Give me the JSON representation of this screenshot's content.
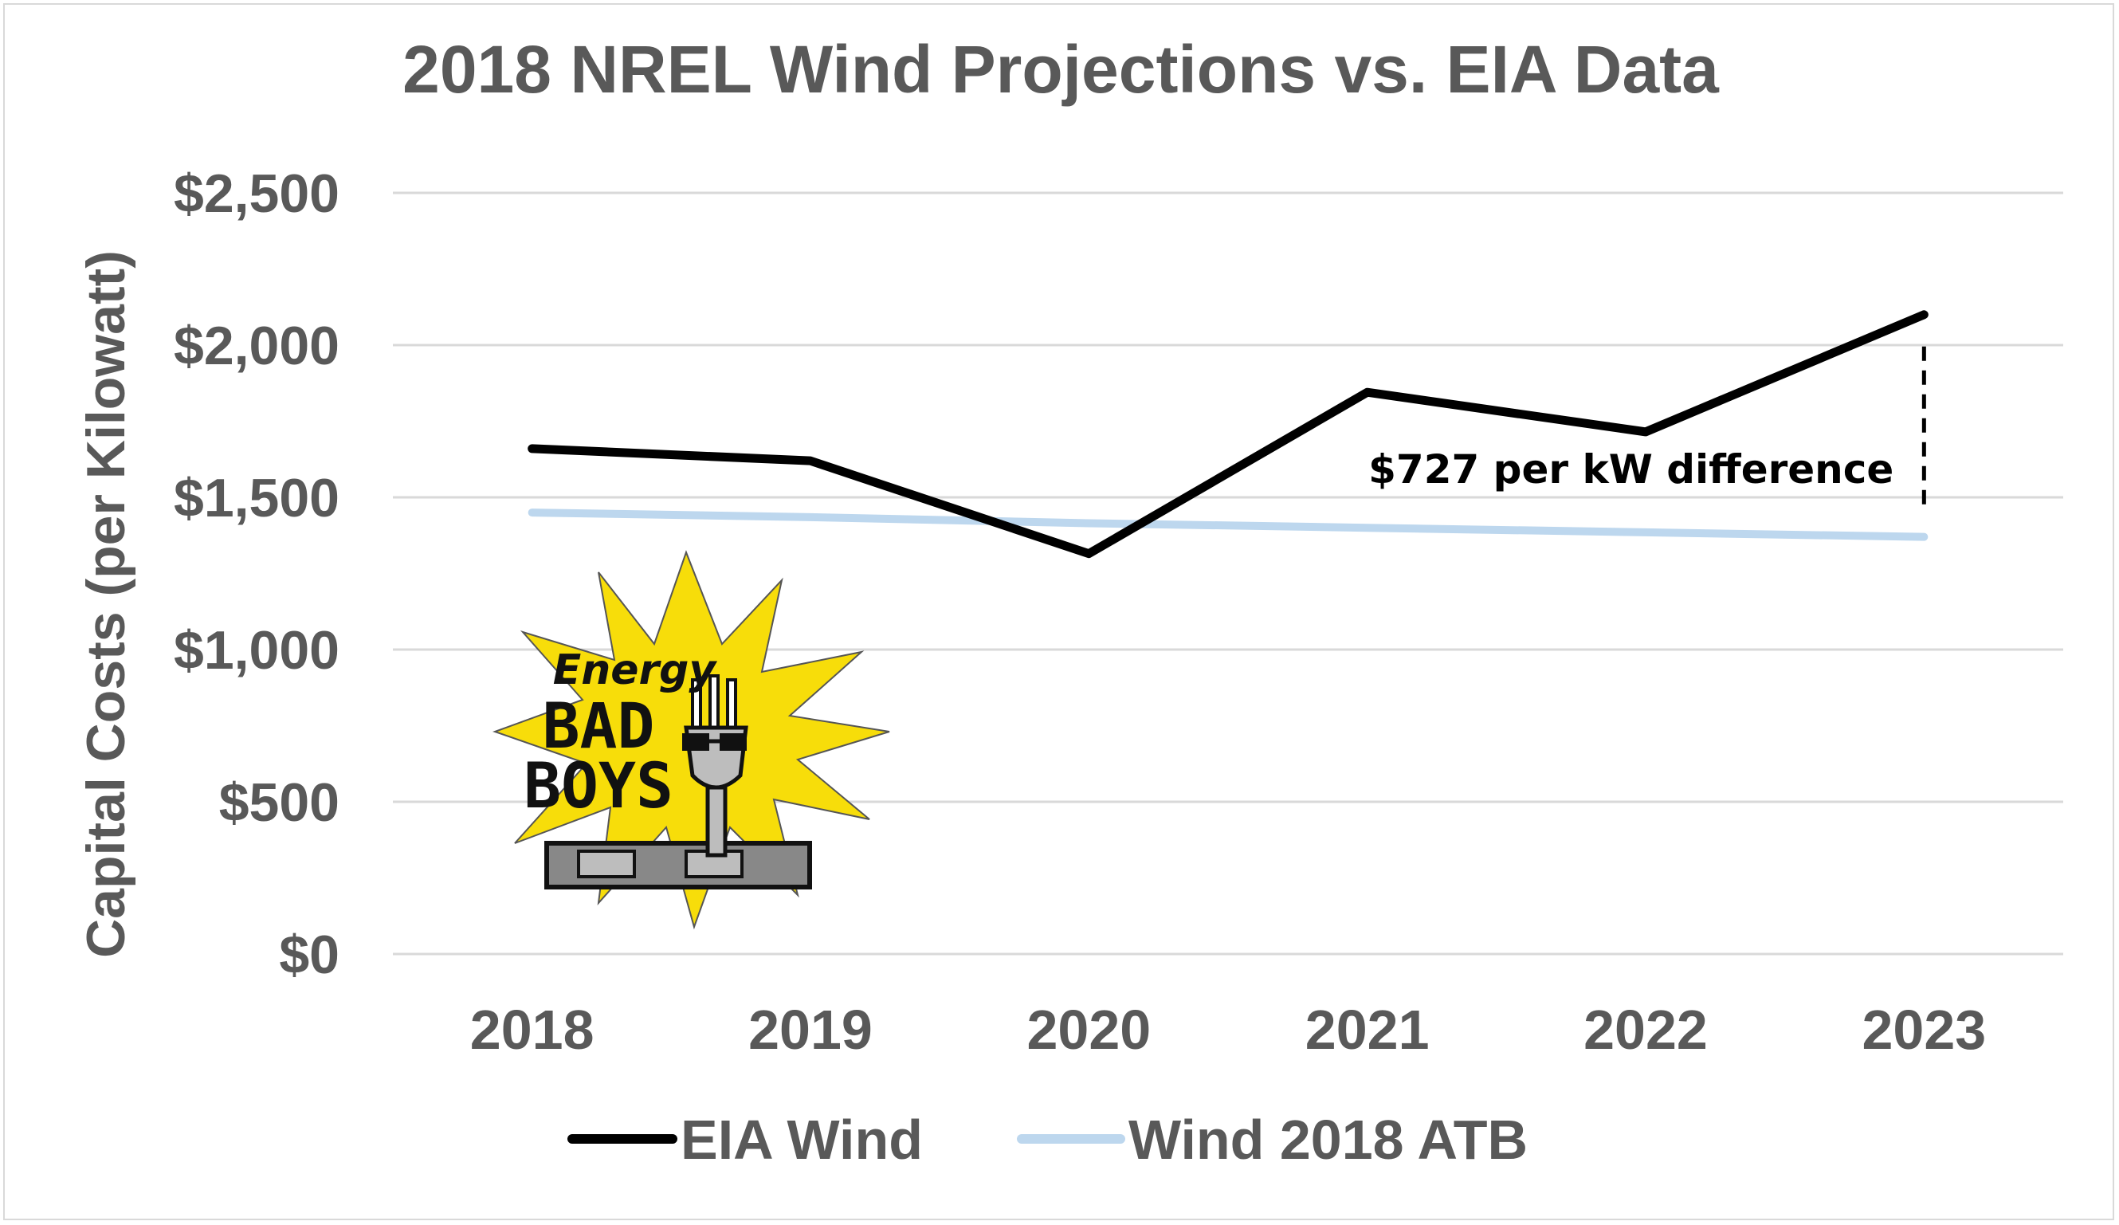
{
  "chart_data": {
    "type": "line",
    "title": "2018 NREL Wind Projections vs. EIA Data",
    "xlabel": "",
    "ylabel": "Capital Costs (per Kilowatt)",
    "categories": [
      "2018",
      "2019",
      "2020",
      "2021",
      "2022",
      "2023"
    ],
    "ylim": [
      0,
      2500
    ],
    "yticks": [
      0,
      500,
      1000,
      1500,
      2000,
      2500
    ],
    "ytick_labels": [
      "$0",
      "$500",
      "$1,000",
      "$1,500",
      "$2,000",
      "$2,500"
    ],
    "grid": true,
    "legend_position": "bottom",
    "series": [
      {
        "name": "EIA Wind",
        "color": "#000000",
        "values": [
          1660,
          1620,
          1315,
          1845,
          1715,
          2100
        ]
      },
      {
        "name": "Wind 2018 ATB",
        "color": "#bdd7ee",
        "values": [
          1450,
          1435,
          1415,
          1400,
          1385,
          1370
        ]
      }
    ],
    "annotation": {
      "text": "$727 per kW difference",
      "category": "2023"
    }
  },
  "logo": {
    "name": "Energy Bad Boys",
    "lines": [
      "Energy",
      "BAD",
      "BOYS"
    ]
  }
}
